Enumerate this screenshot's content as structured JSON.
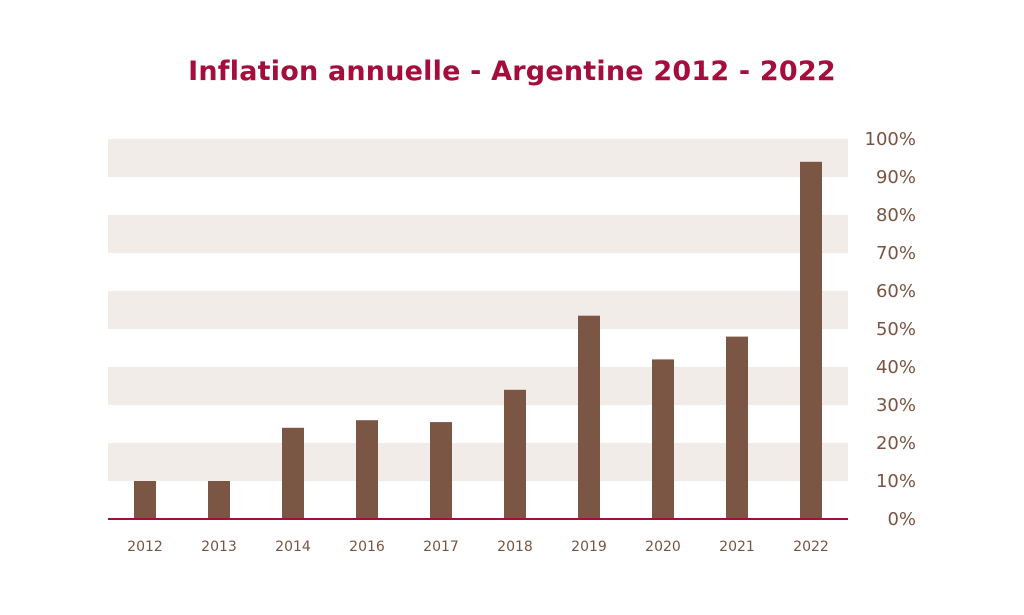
{
  "colors": {
    "title": "#a50d3c",
    "bar": "#7b5644",
    "band": "#f2ece8",
    "baseline": "#a50d3c",
    "tick": "#7a5442"
  },
  "chart_data": {
    "type": "bar",
    "title": "Inflation annuelle - Argentine 2012 - 2022",
    "xlabel": "",
    "ylabel": "",
    "categories": [
      "2012",
      "2013",
      "2014",
      "2016",
      "2017",
      "2018",
      "2019",
      "2020",
      "2021",
      "2022"
    ],
    "values": [
      10,
      10,
      24,
      26,
      25.5,
      34,
      53.5,
      42,
      48,
      94
    ],
    "ylim": [
      0,
      100
    ],
    "yticks": [
      "0%",
      "10%",
      "20%",
      "30%",
      "40%",
      "50%",
      "60%",
      "70%",
      "80%",
      "90%",
      "100%"
    ],
    "y_axis_position": "right",
    "grid": "alternating bands",
    "legend": "none"
  }
}
